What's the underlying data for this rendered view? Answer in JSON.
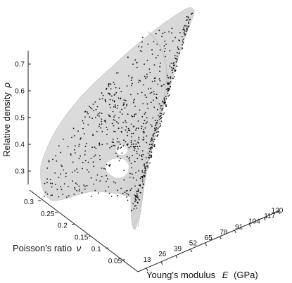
{
  "chart_data": {
    "type": "scatter",
    "subtype": "3d-scatter-with-surface",
    "title": "",
    "axes": {
      "x": {
        "label_text": "Young's modulus",
        "label_symbol": "E",
        "label_unit": "(GPa)",
        "ticks": [
          "13",
          "26",
          "39",
          "52",
          "65",
          "78",
          "91",
          "104",
          "117",
          "130"
        ],
        "range": [
          13,
          130
        ]
      },
      "y": {
        "label_text": "Poisson's ratio",
        "label_symbol": "ν",
        "ticks": [
          "0.05",
          "0.1",
          "0.15",
          "0.2",
          "0.25",
          "0.3"
        ],
        "range": [
          0.05,
          0.3
        ]
      },
      "z": {
        "label_text": "Relative density",
        "label_symbol": "ρ",
        "ticks": [
          "0.3",
          "0.4",
          "0.5",
          "0.6",
          "0.7"
        ],
        "range": [
          0.25,
          0.75
        ]
      }
    },
    "surface": {
      "color": "#d8d8d8",
      "description_visible": false
    },
    "clusters": [
      {
        "name_hidden": true,
        "E": [
          13,
          45
        ],
        "nu": [
          0.12,
          0.31
        ],
        "rho": [
          0.28,
          0.72
        ],
        "count": 520
      },
      {
        "name_hidden": true,
        "E": [
          14,
          26
        ],
        "nu": [
          0.04,
          0.1
        ],
        "rho": [
          0.28,
          0.75
        ],
        "count": 230
      }
    ],
    "grid": false,
    "legend": "none",
    "colors": {
      "points": "#111111",
      "surface": "#d9d9d9",
      "surface_edge": "#c4c4c4"
    }
  }
}
